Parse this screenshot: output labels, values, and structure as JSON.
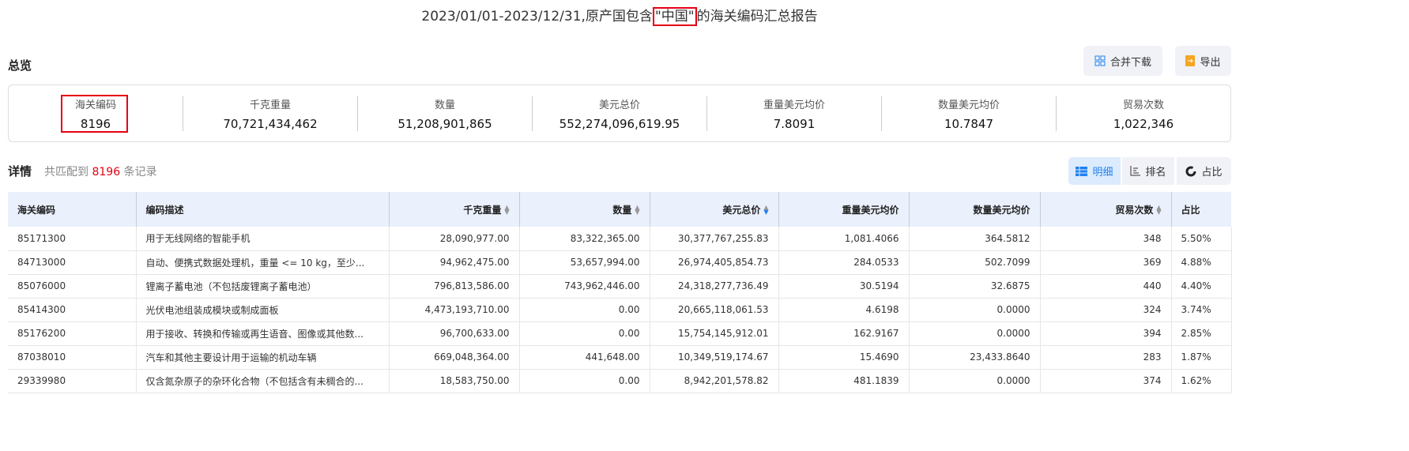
{
  "title": {
    "prefix": "2023/01/01-2023/12/31,原产国包含",
    "highlight": "\"中国\"",
    "suffix": "的海关编码汇总报告"
  },
  "overview": {
    "label": "总览",
    "merge_download": "合并下载",
    "export": "导出"
  },
  "stats": [
    {
      "label": "海关编码",
      "value": "8196"
    },
    {
      "label": "千克重量",
      "value": "70,721,434,462"
    },
    {
      "label": "数量",
      "value": "51,208,901,865"
    },
    {
      "label": "美元总价",
      "value": "552,274,096,619.95"
    },
    {
      "label": "重量美元均价",
      "value": "7.8091"
    },
    {
      "label": "数量美元均价",
      "value": "10.7847"
    },
    {
      "label": "贸易次数",
      "value": "1,022,346"
    }
  ],
  "detail": {
    "label": "详情",
    "prefix": "共匹配到",
    "count": "8196",
    "suffix": "条记录"
  },
  "views": {
    "detail": "明细",
    "rank": "排名",
    "share": "占比",
    "active": "detail"
  },
  "accent": "#2080f0",
  "columns": [
    "海关编码",
    "编码描述",
    "千克重量",
    "数量",
    "美元总价",
    "重量美元均价",
    "数量美元均价",
    "贸易次数",
    "占比"
  ],
  "sort_column": "美元总价",
  "sort_direction": "desc",
  "rows": [
    [
      "85171300",
      "用于无线网络的智能手机",
      "28,090,977.00",
      "83,322,365.00",
      "30,377,767,255.83",
      "1,081.4066",
      "364.5812",
      "348",
      "5.50%"
    ],
    [
      "84713000",
      "自动、便携式数据处理机，重量 <= 10 kg，至少...",
      "94,962,475.00",
      "53,657,994.00",
      "26,974,405,854.73",
      "284.0533",
      "502.7099",
      "369",
      "4.88%"
    ],
    [
      "85076000",
      "锂离子蓄电池（不包括废锂离子蓄电池）",
      "796,813,586.00",
      "743,962,446.00",
      "24,318,277,736.49",
      "30.5194",
      "32.6875",
      "440",
      "4.40%"
    ],
    [
      "85414300",
      "光伏电池组装成模块或制成面板",
      "4,473,193,710.00",
      "0.00",
      "20,665,118,061.53",
      "4.6198",
      "0.0000",
      "324",
      "3.74%"
    ],
    [
      "85176200",
      "用于接收、转换和传输或再生语音、图像或其他数...",
      "96,700,633.00",
      "0.00",
      "15,754,145,912.01",
      "162.9167",
      "0.0000",
      "394",
      "2.85%"
    ],
    [
      "87038010",
      "汽车和其他主要设计用于运输的机动车辆",
      "669,048,364.00",
      "441,648.00",
      "10,349,519,174.67",
      "15.4690",
      "23,433.8640",
      "283",
      "1.87%"
    ],
    [
      "29339980",
      "仅含氮杂原子的杂环化合物（不包括含有未稠合的...",
      "18,583,750.00",
      "0.00",
      "8,942,201,578.82",
      "481.1839",
      "0.0000",
      "374",
      "1.62%"
    ]
  ]
}
